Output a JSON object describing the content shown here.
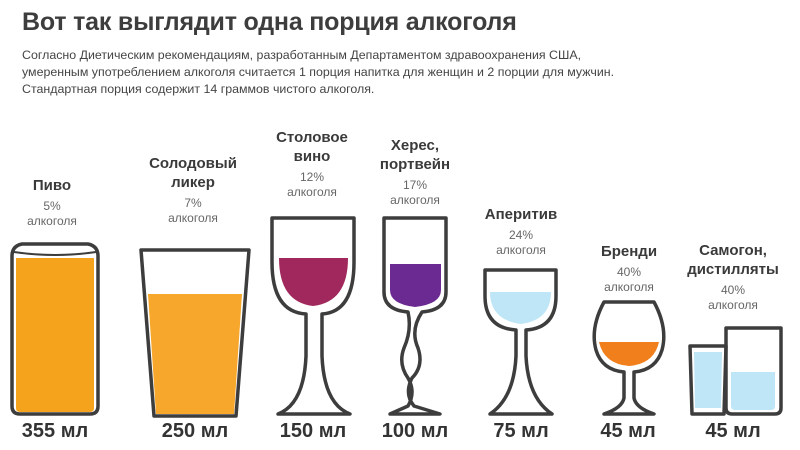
{
  "title": "Вот так выглядит одна порция алкоголя",
  "intro": [
    "Согласно Диетическим рекомендациям, разработанным Департаментом здравоохранения США,",
    "умеренным употреблением алкоголя считается 1 порция напитка для женщин и 2 порции для мужчин.",
    "Стандартная порция содержит 14 граммов чистого алкоголя."
  ],
  "drinks": [
    {
      "name": [
        "Пиво"
      ],
      "percent": "5%",
      "alcohol": "алкоголя",
      "volume": "355 мл",
      "color": "#f5a21d"
    },
    {
      "name": [
        "Солодовый",
        "ликер"
      ],
      "percent": "7%",
      "alcohol": "алкоголя",
      "volume": "250 мл",
      "color": "#f7a72b"
    },
    {
      "name": [
        "Столовое",
        "вино"
      ],
      "percent": "12%",
      "alcohol": "алкоголя",
      "volume": "150 мл",
      "color": "#a0285c"
    },
    {
      "name": [
        "Херес,",
        "портвейн"
      ],
      "percent": "17%",
      "alcohol": "алкоголя",
      "volume": "100 мл",
      "color": "#6b2a92"
    },
    {
      "name": [
        "Аперитив"
      ],
      "percent": "24%",
      "alcohol": "алкоголя",
      "volume": "75 мл",
      "color": "#bfe6f6"
    },
    {
      "name": [
        "Бренди"
      ],
      "percent": "40%",
      "alcohol": "алкоголя",
      "volume": "45 мл",
      "color": "#f07f1c"
    },
    {
      "name": [
        "Самогон,",
        "дистилляты"
      ],
      "percent": "40%",
      "alcohol": "алкоголя",
      "volume": "45 мл",
      "color": "#bfe6f6"
    }
  ],
  "colors": {
    "outline": "#3d3d3d",
    "text": "#3a3a3a",
    "background": "#ffffff"
  }
}
